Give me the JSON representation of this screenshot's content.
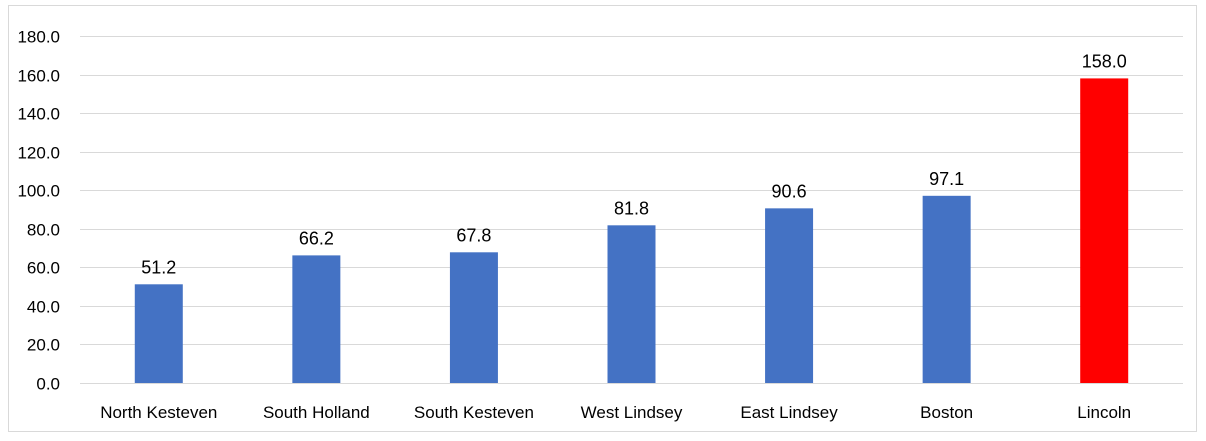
{
  "chart_data": {
    "type": "bar",
    "title": "",
    "xlabel": "",
    "ylabel": "",
    "categories": [
      "North Kesteven",
      "South Holland",
      "South Kesteven",
      "West Lindsey",
      "East Lindsey",
      "Boston",
      "Lincoln"
    ],
    "values": [
      51.2,
      66.2,
      67.8,
      81.8,
      90.6,
      97.1,
      158.0
    ],
    "value_labels": [
      "51.2",
      "66.2",
      "67.8",
      "81.8",
      "90.6",
      "97.1",
      "158.0"
    ],
    "ylim": [
      0,
      180
    ],
    "yticks": [
      0,
      20,
      40,
      60,
      80,
      100,
      120,
      140,
      160,
      180
    ],
    "ytick_labels": [
      "0.0",
      "20.0",
      "40.0",
      "60.0",
      "80.0",
      "100.0",
      "120.0",
      "140.0",
      "160.0",
      "180.0"
    ],
    "grid": true,
    "legend": "none",
    "colors": {
      "default_bar": "#4472c4",
      "highlight_bar": "#ff0000",
      "gridline": "#d9d9d9",
      "text": "#000000"
    },
    "highlight_category": "Lincoln"
  }
}
